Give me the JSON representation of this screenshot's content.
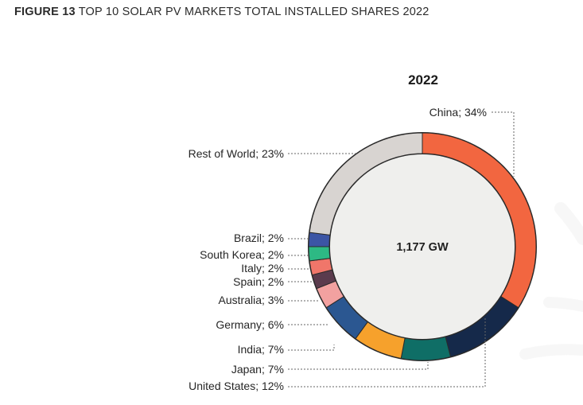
{
  "header": {
    "figure_label": "FIGURE 13",
    "figure_title": "TOP 10 SOLAR PV MARKETS TOTAL INSTALLED SHARES 2022"
  },
  "chart_data": {
    "type": "pie",
    "variant": "donut",
    "title": "2022",
    "center_label": "1,177 GW",
    "slices": [
      {
        "name": "China",
        "value": 34,
        "label": "China; 34%",
        "color": "#f26640"
      },
      {
        "name": "United States",
        "value": 12,
        "label": "United States; 12%",
        "color": "#15294a"
      },
      {
        "name": "Japan",
        "value": 7,
        "label": "Japan; 7%",
        "color": "#0f6e66"
      },
      {
        "name": "India",
        "value": 7,
        "label": "India; 7%",
        "color": "#f6a12c"
      },
      {
        "name": "Germany",
        "value": 6,
        "label": "Germany; 6%",
        "color": "#2b5791"
      },
      {
        "name": "Australia",
        "value": 3,
        "label": "Australia; 3%",
        "color": "#f2a1a0"
      },
      {
        "name": "Spain",
        "value": 2,
        "label": "Spain; 2%",
        "color": "#5b3b4d"
      },
      {
        "name": "Italy",
        "value": 2,
        "label": "Italy; 2%",
        "color": "#f0766a"
      },
      {
        "name": "South Korea",
        "value": 2,
        "label": "South Korea; 2%",
        "color": "#2db984"
      },
      {
        "name": "Brazil",
        "value": 2,
        "label": "Brazil; 2%",
        "color": "#3c55a5"
      },
      {
        "name": "Rest of World",
        "value": 23,
        "label": "Rest of World; 23%",
        "color": "#d8d4d1"
      }
    ],
    "inner_fill_color": "#efefed"
  }
}
